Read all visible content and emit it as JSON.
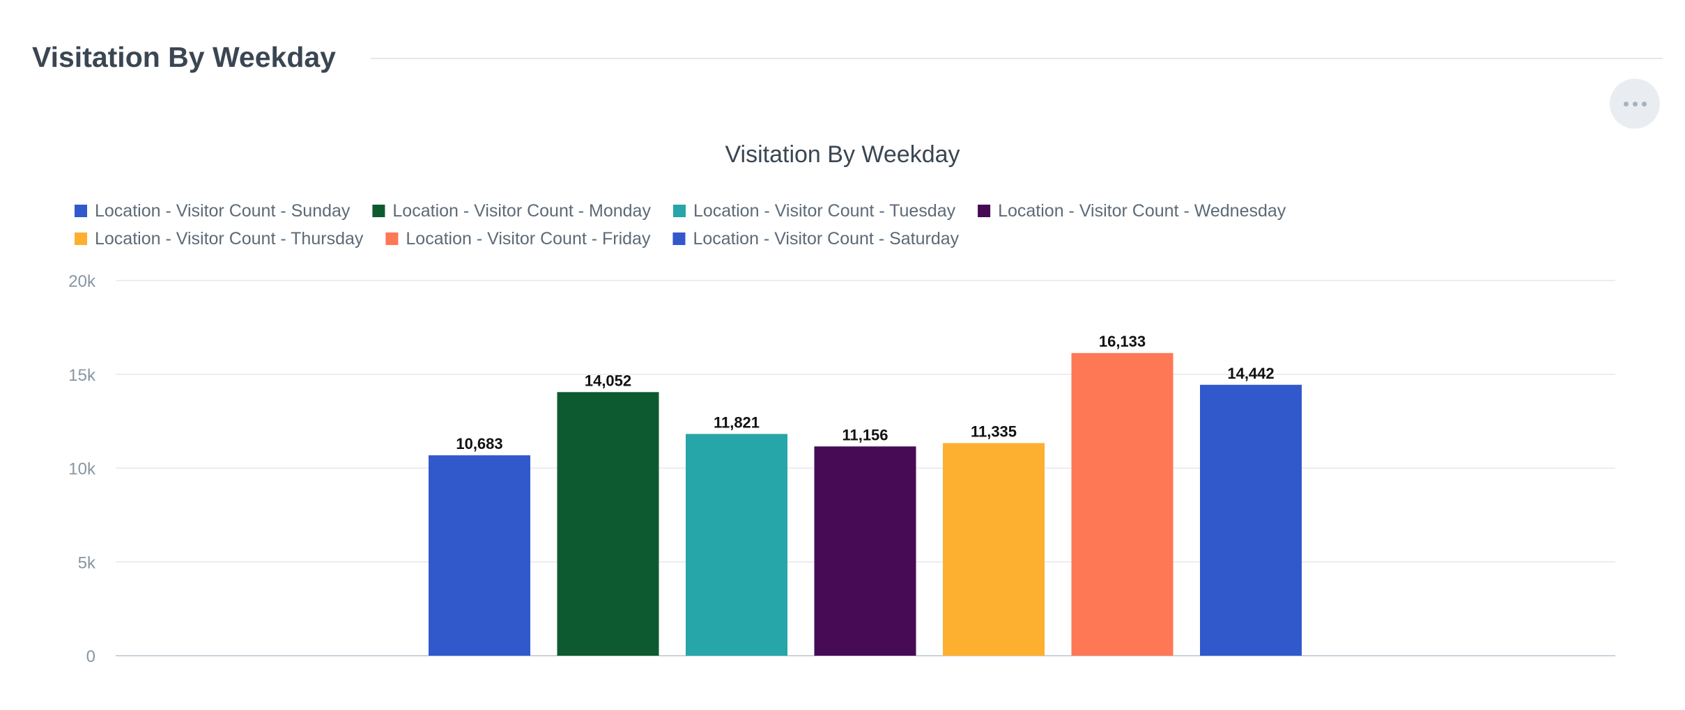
{
  "section": {
    "title": "Visitation By Weekday"
  },
  "colors": {
    "sunday": "#3159cc",
    "monday": "#0e5a30",
    "tuesday": "#26a6a8",
    "wednesday": "#470b55",
    "thursday": "#fdb02f",
    "friday": "#fe7856",
    "saturday": "#3159cc",
    "grid": "#e3e8ec",
    "axis": "#c9d3db"
  },
  "chart_data": {
    "type": "bar",
    "title": "Visitation By Weekday",
    "xlabel": "",
    "ylabel": "",
    "ylim": [
      0,
      20000
    ],
    "yticks": [
      0,
      5000,
      10000,
      15000,
      20000
    ],
    "ytick_labels": [
      "0",
      "5k",
      "10k",
      "15k",
      "20k"
    ],
    "grid": true,
    "legend_position": "top-left",
    "series": [
      {
        "name": "Location - Visitor Count - Sunday",
        "value": 10683,
        "label": "10,683",
        "color": "#3159cc"
      },
      {
        "name": "Location - Visitor Count - Monday",
        "value": 14052,
        "label": "14,052",
        "color": "#0e5a30"
      },
      {
        "name": "Location - Visitor Count - Tuesday",
        "value": 11821,
        "label": "11,821",
        "color": "#26a6a8"
      },
      {
        "name": "Location - Visitor Count - Wednesday",
        "value": 11156,
        "label": "11,156",
        "color": "#470b55"
      },
      {
        "name": "Location - Visitor Count - Thursday",
        "value": 11335,
        "label": "11,335",
        "color": "#fdb02f"
      },
      {
        "name": "Location - Visitor Count - Friday",
        "value": 16133,
        "label": "16,133",
        "color": "#fe7856"
      },
      {
        "name": "Location - Visitor Count - Saturday",
        "value": 14442,
        "label": "14,442",
        "color": "#3159cc"
      }
    ]
  }
}
